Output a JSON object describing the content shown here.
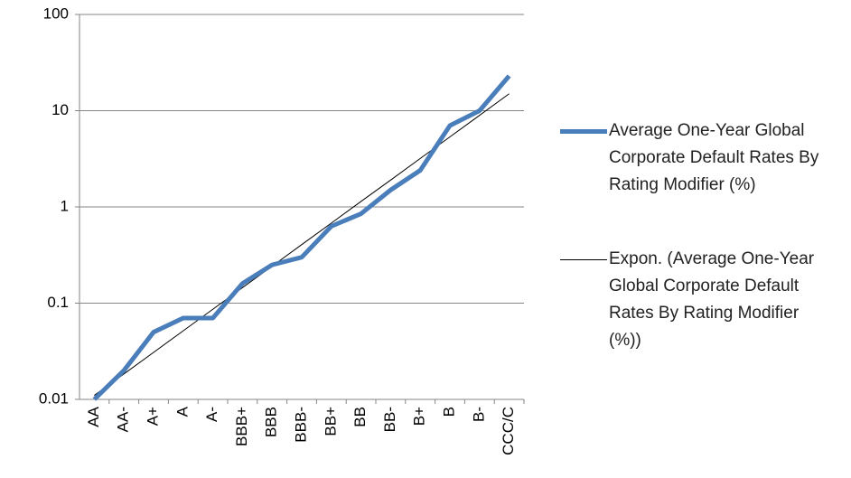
{
  "chart_data": {
    "type": "line",
    "categories": [
      "AA",
      "AA-",
      "A+",
      "A",
      "A-",
      "BBB+",
      "BBB",
      "BBB-",
      "BB+",
      "BB",
      "BB-",
      "B+",
      "B",
      "B-",
      "CCC/C"
    ],
    "series": [
      {
        "name": "Average One-Year Global Corporate Default Rates By Rating Modifier (%)",
        "color": "#4a7ebb",
        "width": 5,
        "values": [
          0.01,
          0.02,
          0.05,
          0.07,
          0.07,
          0.16,
          0.25,
          0.3,
          0.63,
          0.85,
          1.5,
          2.4,
          7,
          10,
          23
        ]
      },
      {
        "name": "Expon. (Average One-Year Global Corporate Default Rates By Rating Modifier (%))",
        "color": "#000000",
        "width": 1,
        "values": [
          0.011,
          0.0184,
          0.0308,
          0.0516,
          0.0864,
          0.145,
          0.242,
          0.406,
          0.679,
          1.14,
          1.9,
          3.19,
          5.34,
          8.94,
          15
        ]
      }
    ],
    "ylim": [
      0.01,
      100
    ],
    "yticks": [
      0.01,
      0.1,
      1,
      10,
      100
    ],
    "ylog": true,
    "grid": true,
    "legend": "right"
  }
}
